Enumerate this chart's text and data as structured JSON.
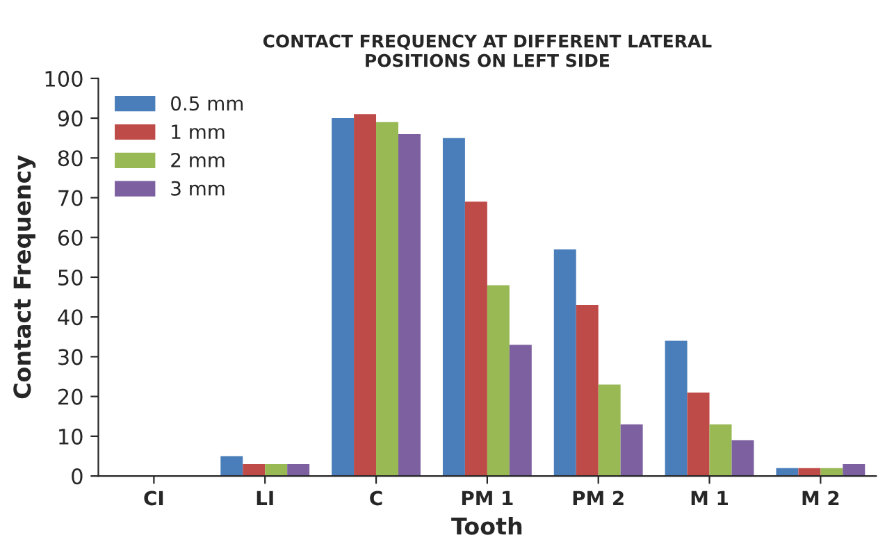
{
  "chart_data": {
    "type": "bar",
    "title": "CONTACT FREQUENCY AT DIFFERENT LATERAL\nPOSITIONS ON LEFT SIDE",
    "xlabel": "Tooth",
    "ylabel": "Contact Frequency",
    "categories": [
      "CI",
      "LI",
      "C",
      "PM 1",
      "PM 2",
      "M 1",
      "M 2"
    ],
    "series": [
      {
        "name": "0.5 mm",
        "color": "#4a7ebb",
        "values": [
          0,
          5,
          90,
          85,
          57,
          34,
          2
        ]
      },
      {
        "name": "1 mm",
        "color": "#be4b48",
        "values": [
          0,
          3,
          91,
          69,
          43,
          21,
          2
        ]
      },
      {
        "name": "2 mm",
        "color": "#98b954",
        "values": [
          0,
          3,
          89,
          48,
          23,
          13,
          2
        ]
      },
      {
        "name": "3 mm",
        "color": "#7d60a0",
        "values": [
          0,
          3,
          86,
          33,
          13,
          9,
          3
        ]
      }
    ],
    "ylim": [
      0,
      100
    ],
    "yticks": [
      0,
      10,
      20,
      30,
      40,
      50,
      60,
      70,
      80,
      90,
      100
    ],
    "grid": false,
    "legend": "top left"
  }
}
